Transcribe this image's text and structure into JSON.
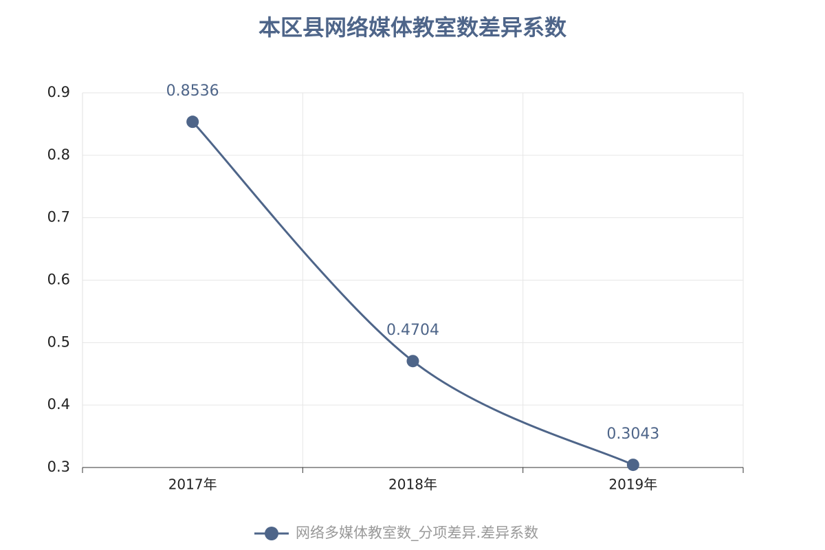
{
  "chart_data": {
    "type": "line",
    "title": "本区县网络媒体教室数差异系数",
    "categories": [
      "2017年",
      "2018年",
      "2019年"
    ],
    "series": [
      {
        "name": "网络多媒体教室数_分项差异.差异系数",
        "color": "#4e6589",
        "values": [
          0.8536,
          0.4704,
          0.3043
        ]
      }
    ],
    "ylim": [
      0.3,
      0.9
    ],
    "yticks": [
      0.3,
      0.4,
      0.5,
      0.6,
      0.7,
      0.8,
      0.9
    ],
    "grid": true,
    "smooth": true,
    "legend": "bottom"
  }
}
